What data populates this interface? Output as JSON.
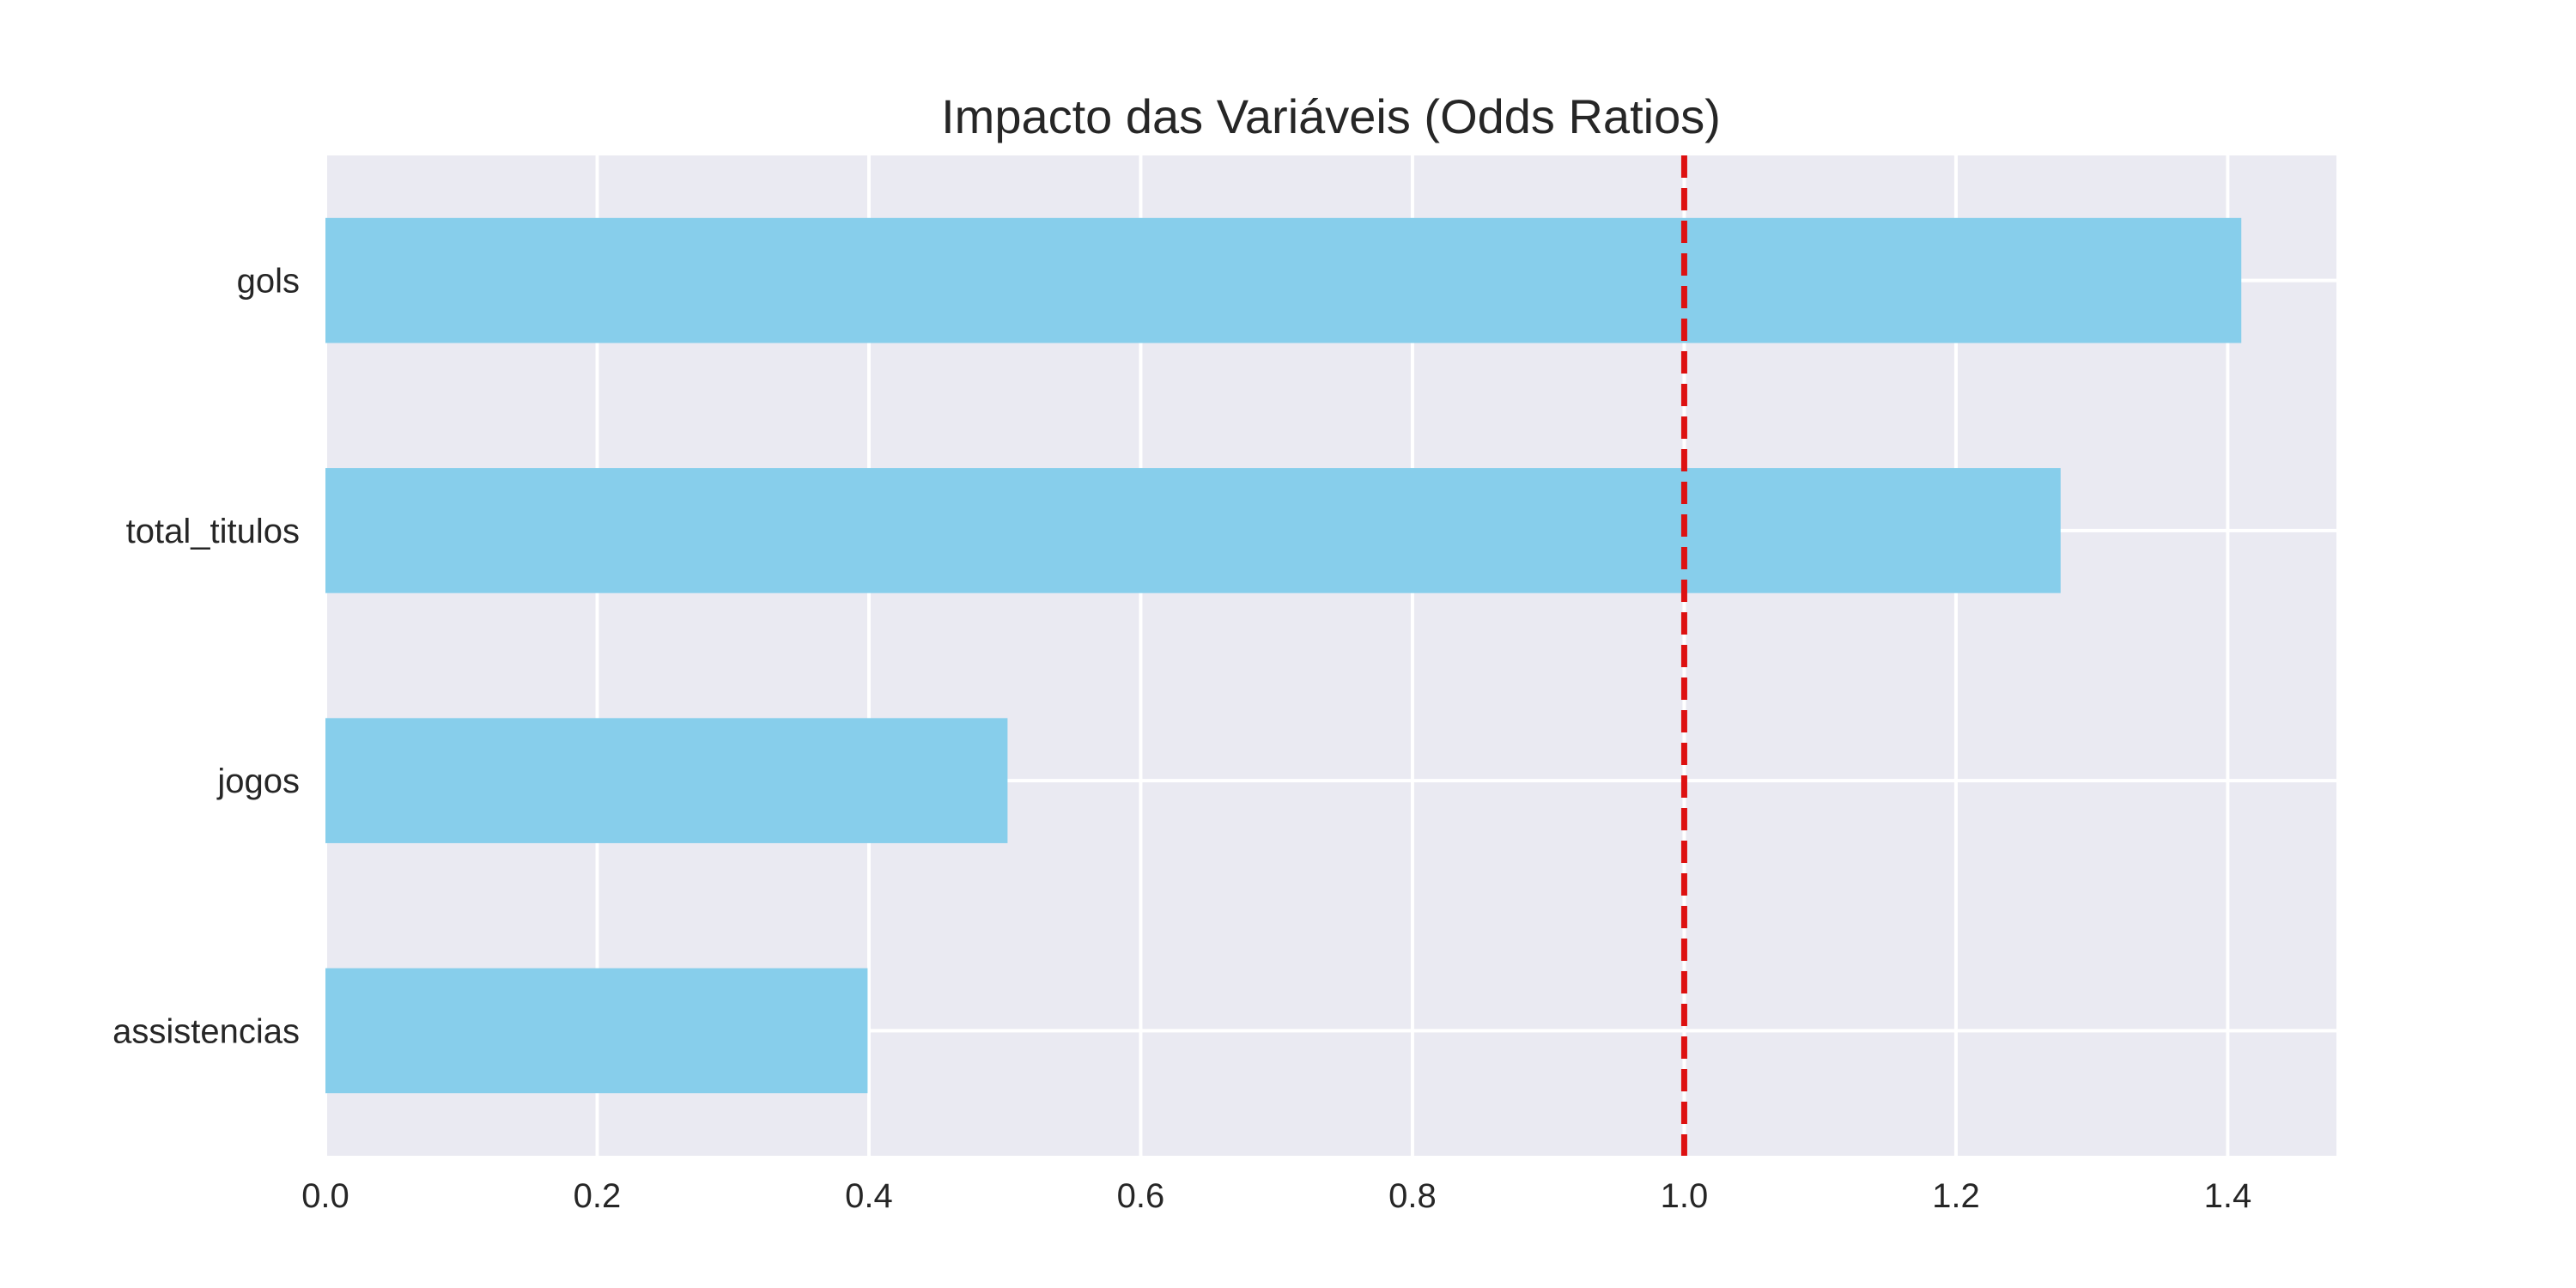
{
  "chart_data": {
    "type": "bar",
    "orientation": "horizontal",
    "title": "Impacto das Variáveis (Odds Ratios)",
    "xlabel": "",
    "ylabel": "",
    "categories": [
      "gols",
      "total_titulos",
      "jogos",
      "assistencias"
    ],
    "values": [
      1.41,
      1.277,
      0.502,
      0.399
    ],
    "xlim": [
      0.0,
      1.48
    ],
    "xticks": [
      0.0,
      0.2,
      0.4,
      0.6,
      0.8,
      1.0,
      1.2,
      1.4
    ],
    "xtick_labels": [
      "0.0",
      "0.2",
      "0.4",
      "0.6",
      "0.8",
      "1.0",
      "1.2",
      "1.4"
    ],
    "reference_line": {
      "x": 1.0,
      "style": "dashed",
      "color": "#dd1111"
    },
    "grid": true,
    "legend": "none",
    "colors": {
      "bar": "#87ceeb",
      "background": "#eaeaf2",
      "grid": "#ffffff"
    }
  }
}
